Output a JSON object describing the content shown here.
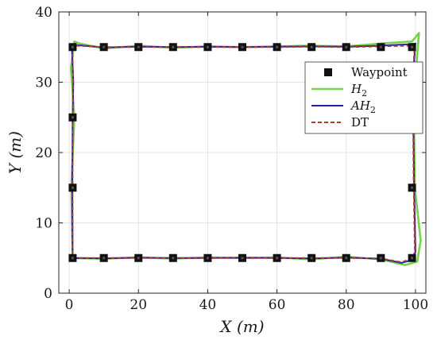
{
  "chart_data": {
    "type": "line",
    "xlabel": "X (m)",
    "ylabel": "Y (m)",
    "xlim": [
      -3,
      103
    ],
    "ylim": [
      0,
      40
    ],
    "xticks": [
      0,
      20,
      40,
      60,
      80,
      100
    ],
    "yticks": [
      0,
      10,
      20,
      30,
      40
    ],
    "grid": true,
    "legend_position": "top-right",
    "colors": {
      "waypoint": "#111111",
      "H2": "#77d14a",
      "AH2": "#1f1fb4",
      "DT": "#b53a2e"
    },
    "legend": [
      {
        "key": "waypoint",
        "label": "Waypoint"
      },
      {
        "key": "H2",
        "label": "H_2",
        "base": "H",
        "sub": "2"
      },
      {
        "key": "AH2",
        "label": "AH_2",
        "base": "AH",
        "sub": "2"
      },
      {
        "key": "DT",
        "label": "DT"
      }
    ],
    "waypoints": [
      [
        1,
        5
      ],
      [
        10,
        5
      ],
      [
        20,
        5
      ],
      [
        30,
        5
      ],
      [
        40,
        5
      ],
      [
        50,
        5
      ],
      [
        60,
        5
      ],
      [
        70,
        5
      ],
      [
        80,
        5
      ],
      [
        90,
        5
      ],
      [
        99,
        5
      ],
      [
        99,
        15
      ],
      [
        99,
        25
      ],
      [
        99,
        35
      ],
      [
        90,
        35
      ],
      [
        80,
        35
      ],
      [
        70,
        35
      ],
      [
        60,
        35
      ],
      [
        50,
        35
      ],
      [
        40,
        35
      ],
      [
        30,
        35
      ],
      [
        20,
        35
      ],
      [
        10,
        35
      ],
      [
        1,
        35
      ],
      [
        1,
        25
      ],
      [
        1,
        15
      ]
    ],
    "series": [
      {
        "name": "H_2",
        "key": "H2",
        "points": [
          [
            1,
            5
          ],
          [
            10,
            4.9
          ],
          [
            20,
            5.1
          ],
          [
            30,
            4.9
          ],
          [
            40,
            5.1
          ],
          [
            50,
            5.0
          ],
          [
            60,
            5.1
          ],
          [
            70,
            4.8
          ],
          [
            80,
            5.2
          ],
          [
            90,
            4.8
          ],
          [
            97,
            4.0
          ],
          [
            100.5,
            4.5
          ],
          [
            101.5,
            7.5
          ],
          [
            99.8,
            15
          ],
          [
            99.5,
            25
          ],
          [
            100.2,
            32
          ],
          [
            101,
            37
          ],
          [
            99,
            35.8
          ],
          [
            90,
            35.5
          ],
          [
            80,
            35.1
          ],
          [
            70,
            35.2
          ],
          [
            60,
            35.1
          ],
          [
            50,
            35.0
          ],
          [
            40,
            35.1
          ],
          [
            30,
            34.9
          ],
          [
            20,
            35.2
          ],
          [
            10,
            34.8
          ],
          [
            3,
            35.5
          ],
          [
            1.5,
            35.8
          ],
          [
            0.5,
            32
          ],
          [
            1.5,
            25
          ],
          [
            0.6,
            15
          ],
          [
            1,
            5
          ]
        ]
      },
      {
        "name": "AH_2",
        "key": "AH2",
        "points": [
          [
            1,
            5
          ],
          [
            10,
            4.95
          ],
          [
            20,
            5.05
          ],
          [
            30,
            5.0
          ],
          [
            40,
            5.0
          ],
          [
            50,
            5.05
          ],
          [
            60,
            5.0
          ],
          [
            70,
            4.95
          ],
          [
            80,
            5.05
          ],
          [
            90,
            4.9
          ],
          [
            96,
            4.3
          ],
          [
            99.5,
            4.8
          ],
          [
            100,
            6
          ],
          [
            99.6,
            15
          ],
          [
            99.4,
            25
          ],
          [
            99.6,
            33
          ],
          [
            100,
            35.5
          ],
          [
            98,
            35.4
          ],
          [
            90,
            35.2
          ],
          [
            80,
            35.05
          ],
          [
            70,
            35.1
          ],
          [
            60,
            35.05
          ],
          [
            50,
            35.0
          ],
          [
            40,
            35.05
          ],
          [
            30,
            35.0
          ],
          [
            20,
            35.05
          ],
          [
            10,
            34.95
          ],
          [
            2,
            35.3
          ],
          [
            0.8,
            34.5
          ],
          [
            1.2,
            30
          ],
          [
            1.0,
            25
          ],
          [
            0.9,
            15
          ],
          [
            1,
            5
          ]
        ]
      },
      {
        "name": "DT",
        "key": "DT",
        "points": [
          [
            1,
            5
          ],
          [
            10,
            5.0
          ],
          [
            20,
            5.0
          ],
          [
            30,
            5.0
          ],
          [
            40,
            5.0
          ],
          [
            50,
            5.0
          ],
          [
            60,
            5.0
          ],
          [
            70,
            5.0
          ],
          [
            80,
            5.0
          ],
          [
            90,
            4.95
          ],
          [
            96,
            4.4
          ],
          [
            99.3,
            5
          ],
          [
            99.8,
            6
          ],
          [
            99.5,
            15
          ],
          [
            99.3,
            25
          ],
          [
            99.5,
            33
          ],
          [
            99.8,
            35.3
          ],
          [
            98,
            35.2
          ],
          [
            90,
            35.1
          ],
          [
            80,
            35.0
          ],
          [
            70,
            35.05
          ],
          [
            60,
            35.0
          ],
          [
            50,
            35.0
          ],
          [
            40,
            35.0
          ],
          [
            30,
            35.0
          ],
          [
            20,
            35.0
          ],
          [
            10,
            35.0
          ],
          [
            2,
            35.2
          ],
          [
            1.0,
            34.5
          ],
          [
            1.1,
            30
          ],
          [
            1.0,
            25
          ],
          [
            1.0,
            15
          ],
          [
            1,
            5
          ]
        ]
      }
    ]
  }
}
